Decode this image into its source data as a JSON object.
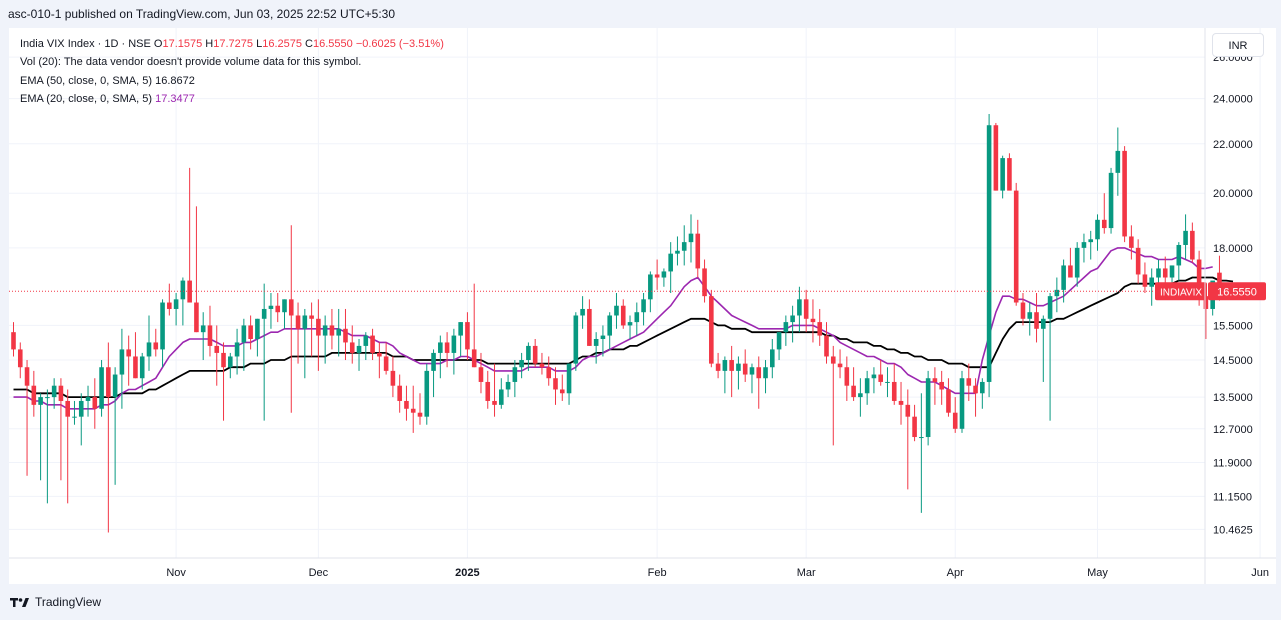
{
  "header": {
    "published_text": "asc-010-1 published on TradingView.com, Jun 03, 2025 22:52 UTC+5:30"
  },
  "legend": {
    "symbol_line": "India VIX Index · 1D · NSE",
    "ohlc": {
      "o_label": "O",
      "o_value": "17.1575",
      "h_label": "H",
      "h_value": "17.7275",
      "l_label": "L",
      "l_value": "16.2575",
      "c_label": "C",
      "c_value": "16.5550",
      "change": "−0.6025 (−3.51%)"
    },
    "vol_line": "Vol (20): The data vendor doesn't provide volume data for this symbol.",
    "ema50_label": "EMA (50, close, 0, SMA, 5)",
    "ema50_value": "16.8672",
    "ema20_label": "EMA (20, close, 0, SMA, 5)",
    "ema20_value": "17.3477"
  },
  "currency": "INR",
  "price_tag": {
    "symbol": "INDIAVIX",
    "value": "16.5550"
  },
  "footer": {
    "logo_text": "TradingView"
  },
  "colors": {
    "up": "#089981",
    "down": "#f23645",
    "ema50": "#000000",
    "ema20": "#9c27b0",
    "grid": "#f0f3fa",
    "price_line": "#f23645"
  },
  "chart_data": {
    "type": "candlestick",
    "title": "India VIX Index · 1D · NSE",
    "y_scale": "log",
    "y_tick_labels": [
      "10.4625",
      "11.1500",
      "11.9000",
      "12.7000",
      "13.5000",
      "14.5000",
      "15.5000",
      "16.5550",
      "18.0000",
      "20.0000",
      "22.0000",
      "24.0000",
      "26.0000"
    ],
    "y_range": [
      9.9,
      27.5
    ],
    "x_tick_labels": [
      {
        "label": "Nov",
        "index": 24,
        "bold": false
      },
      {
        "label": "Dec",
        "index": 45,
        "bold": false
      },
      {
        "label": "2025",
        "index": 67,
        "bold": true
      },
      {
        "label": "Feb",
        "index": 95,
        "bold": false
      },
      {
        "label": "Mar",
        "index": 117,
        "bold": false
      },
      {
        "label": "Apr",
        "index": 139,
        "bold": false
      },
      {
        "label": "May",
        "index": 160,
        "bold": false
      },
      {
        "label": "Jun",
        "index": 184,
        "bold": false
      }
    ],
    "candles": [
      [
        15.3,
        15.6,
        14.6,
        14.8
      ],
      [
        14.8,
        15.0,
        14.0,
        14.3
      ],
      [
        14.3,
        14.5,
        11.6,
        13.8
      ],
      [
        13.8,
        14.2,
        13.0,
        13.3
      ],
      [
        13.3,
        13.6,
        11.5,
        13.5
      ],
      [
        13.5,
        13.7,
        11.0,
        13.5
      ],
      [
        13.5,
        14.0,
        13.2,
        13.8
      ],
      [
        13.8,
        14.0,
        11.5,
        13.4
      ],
      [
        13.4,
        13.7,
        11.0,
        13.0
      ],
      [
        13.0,
        13.4,
        12.8,
        13.0
      ],
      [
        13.0,
        13.6,
        12.3,
        13.4
      ],
      [
        13.4,
        13.8,
        13.0,
        13.5
      ],
      [
        13.5,
        14.0,
        12.7,
        13.2
      ],
      [
        13.2,
        14.5,
        13.0,
        14.3
      ],
      [
        14.3,
        15.0,
        10.4,
        13.5
      ],
      [
        13.5,
        14.3,
        11.4,
        14.1
      ],
      [
        14.1,
        15.4,
        13.2,
        14.8
      ],
      [
        14.8,
        15.2,
        13.8,
        14.6
      ],
      [
        14.6,
        15.3,
        14.0,
        14.0
      ],
      [
        14.0,
        14.7,
        13.7,
        14.6
      ],
      [
        14.6,
        15.8,
        14.2,
        15.0
      ],
      [
        15.0,
        15.4,
        14.6,
        14.8
      ],
      [
        14.8,
        16.3,
        14.3,
        16.2
      ],
      [
        16.2,
        16.8,
        15.8,
        16.0
      ],
      [
        16.0,
        16.5,
        15.5,
        16.3
      ],
      [
        16.3,
        17.0,
        15.5,
        16.9
      ],
      [
        16.9,
        21.0,
        16.2,
        16.2
      ],
      [
        16.2,
        19.5,
        15.3,
        15.3
      ],
      [
        15.3,
        15.9,
        14.5,
        15.5
      ],
      [
        15.5,
        16.1,
        14.6,
        14.9
      ],
      [
        14.9,
        15.5,
        13.8,
        14.7
      ],
      [
        14.7,
        15.0,
        12.9,
        14.3
      ],
      [
        14.3,
        14.7,
        14.0,
        14.6
      ],
      [
        14.6,
        15.4,
        14.1,
        15.0
      ],
      [
        15.0,
        15.7,
        14.2,
        15.5
      ],
      [
        15.5,
        15.8,
        14.8,
        15.1
      ],
      [
        15.1,
        15.7,
        14.6,
        15.7
      ],
      [
        15.7,
        16.8,
        12.9,
        16.0
      ],
      [
        16.0,
        16.5,
        15.4,
        16.1
      ],
      [
        16.1,
        16.5,
        15.6,
        15.9
      ],
      [
        15.9,
        16.3,
        15.4,
        16.3
      ],
      [
        16.3,
        18.8,
        13.1,
        15.8
      ],
      [
        15.8,
        16.2,
        14.4,
        15.4
      ],
      [
        15.4,
        16.0,
        14.0,
        15.8
      ],
      [
        15.8,
        16.2,
        14.6,
        15.7
      ],
      [
        15.7,
        16.3,
        14.2,
        15.2
      ],
      [
        15.2,
        15.8,
        14.4,
        15.5
      ],
      [
        15.5,
        16.0,
        14.8,
        15.2
      ],
      [
        15.2,
        16.0,
        14.6,
        15.4
      ],
      [
        15.4,
        16.0,
        14.5,
        15.0
      ],
      [
        15.0,
        15.5,
        14.4,
        14.7
      ],
      [
        14.7,
        15.1,
        14.2,
        14.9
      ],
      [
        14.9,
        15.3,
        14.5,
        15.2
      ],
      [
        15.2,
        15.4,
        14.5,
        14.7
      ],
      [
        14.7,
        15.0,
        14.0,
        14.6
      ],
      [
        14.6,
        15.0,
        14.1,
        14.2
      ],
      [
        14.2,
        14.6,
        13.5,
        13.8
      ],
      [
        13.8,
        14.1,
        13.1,
        13.4
      ],
      [
        13.4,
        13.8,
        12.9,
        13.2
      ],
      [
        13.2,
        13.8,
        12.6,
        13.1
      ],
      [
        13.1,
        13.6,
        12.8,
        13.0
      ],
      [
        13.0,
        14.4,
        12.8,
        14.2
      ],
      [
        14.2,
        14.8,
        13.5,
        14.7
      ],
      [
        14.7,
        15.2,
        14.0,
        15.0
      ],
      [
        15.0,
        15.3,
        14.3,
        14.7
      ],
      [
        14.7,
        15.4,
        14.1,
        15.2
      ],
      [
        15.2,
        15.6,
        14.6,
        15.6
      ],
      [
        15.6,
        15.9,
        14.5,
        14.8
      ],
      [
        14.8,
        16.8,
        14.3,
        14.3
      ],
      [
        14.3,
        14.7,
        13.6,
        13.9
      ],
      [
        13.9,
        14.2,
        13.2,
        13.4
      ],
      [
        13.4,
        14.4,
        13.0,
        13.3
      ],
      [
        13.3,
        14.0,
        13.2,
        13.7
      ],
      [
        13.7,
        14.1,
        13.5,
        13.9
      ],
      [
        13.9,
        14.5,
        13.5,
        14.3
      ],
      [
        14.3,
        14.7,
        14.0,
        14.5
      ],
      [
        14.5,
        15.0,
        14.2,
        14.9
      ],
      [
        14.9,
        15.1,
        14.3,
        14.4
      ],
      [
        14.4,
        14.7,
        14.1,
        14.3
      ],
      [
        14.3,
        14.6,
        13.8,
        14.0
      ],
      [
        14.0,
        14.3,
        13.3,
        13.7
      ],
      [
        13.7,
        14.1,
        13.4,
        13.6
      ],
      [
        13.6,
        14.4,
        13.3,
        14.4
      ],
      [
        14.4,
        15.9,
        14.2,
        15.8
      ],
      [
        15.8,
        16.4,
        15.4,
        16.0
      ],
      [
        16.0,
        16.3,
        14.9,
        14.9
      ],
      [
        14.9,
        15.3,
        14.4,
        15.1
      ],
      [
        15.1,
        15.5,
        14.6,
        15.2
      ],
      [
        15.2,
        15.9,
        14.8,
        15.8
      ],
      [
        15.8,
        16.5,
        15.4,
        16.1
      ],
      [
        16.1,
        16.3,
        15.4,
        15.5
      ],
      [
        15.5,
        15.8,
        15.1,
        15.6
      ],
      [
        15.6,
        16.2,
        15.2,
        15.9
      ],
      [
        15.9,
        16.5,
        15.5,
        16.3
      ],
      [
        16.3,
        17.2,
        15.9,
        17.1
      ],
      [
        17.1,
        17.6,
        16.6,
        17.0
      ],
      [
        17.0,
        17.3,
        16.7,
        17.2
      ],
      [
        17.2,
        18.2,
        16.5,
        17.8
      ],
      [
        17.8,
        18.4,
        17.4,
        17.9
      ],
      [
        17.9,
        18.8,
        17.4,
        18.2
      ],
      [
        18.2,
        19.2,
        17.5,
        18.5
      ],
      [
        18.5,
        19.0,
        17.0,
        17.3
      ],
      [
        17.3,
        17.6,
        16.2,
        16.4
      ],
      [
        16.4,
        16.6,
        14.3,
        14.4
      ],
      [
        14.4,
        14.7,
        14.0,
        14.2
      ],
      [
        14.2,
        14.6,
        13.6,
        14.5
      ],
      [
        14.5,
        14.9,
        13.5,
        14.2
      ],
      [
        14.2,
        14.6,
        13.7,
        14.4
      ],
      [
        14.4,
        14.8,
        13.9,
        14.1
      ],
      [
        14.1,
        14.4,
        13.6,
        14.3
      ],
      [
        14.3,
        14.6,
        13.2,
        14.0
      ],
      [
        14.0,
        14.5,
        13.6,
        14.3
      ],
      [
        14.3,
        15.1,
        14.0,
        14.8
      ],
      [
        14.8,
        15.3,
        14.5,
        15.3
      ],
      [
        15.3,
        15.8,
        14.9,
        15.6
      ],
      [
        15.6,
        16.1,
        15.0,
        15.8
      ],
      [
        15.8,
        16.7,
        15.3,
        16.3
      ],
      [
        16.3,
        16.6,
        15.3,
        15.7
      ],
      [
        15.7,
        16.3,
        15.0,
        15.6
      ],
      [
        15.6,
        16.0,
        14.9,
        15.2
      ],
      [
        15.2,
        15.6,
        14.4,
        14.6
      ],
      [
        14.6,
        14.9,
        12.3,
        14.4
      ],
      [
        14.4,
        14.8,
        14.0,
        14.3
      ],
      [
        14.3,
        14.6,
        13.4,
        13.8
      ],
      [
        13.8,
        14.3,
        13.4,
        13.5
      ],
      [
        13.5,
        14.0,
        13.0,
        13.6
      ],
      [
        13.6,
        14.2,
        13.3,
        14.0
      ],
      [
        14.0,
        14.3,
        13.6,
        14.1
      ],
      [
        14.1,
        14.5,
        13.8,
        13.9
      ],
      [
        13.9,
        14.3,
        13.5,
        13.9
      ],
      [
        13.9,
        14.4,
        13.3,
        13.4
      ],
      [
        13.4,
        13.9,
        12.8,
        13.3
      ],
      [
        13.3,
        13.7,
        11.3,
        13.0
      ],
      [
        13.0,
        13.3,
        12.4,
        12.5
      ],
      [
        12.5,
        13.6,
        10.8,
        12.5
      ],
      [
        12.5,
        14.2,
        12.3,
        14.0
      ],
      [
        14.0,
        14.3,
        13.3,
        13.9
      ],
      [
        13.9,
        14.2,
        13.3,
        13.7
      ],
      [
        13.7,
        14.0,
        13.0,
        13.1
      ],
      [
        13.1,
        13.5,
        12.6,
        12.7
      ],
      [
        12.7,
        14.2,
        12.6,
        14.0
      ],
      [
        14.0,
        14.4,
        13.4,
        13.8
      ],
      [
        13.8,
        14.0,
        13.0,
        13.6
      ],
      [
        13.6,
        14.0,
        13.2,
        13.9
      ],
      [
        13.9,
        23.3,
        13.5,
        22.8
      ],
      [
        22.8,
        22.9,
        20.1,
        20.1
      ],
      [
        20.1,
        21.5,
        19.8,
        21.4
      ],
      [
        21.4,
        21.6,
        20.2,
        20.1
      ],
      [
        20.1,
        20.4,
        16.1,
        16.2
      ],
      [
        16.2,
        16.5,
        15.5,
        15.7
      ],
      [
        15.7,
        16.2,
        15.2,
        15.9
      ],
      [
        15.9,
        16.5,
        15.0,
        15.4
      ],
      [
        15.4,
        15.8,
        13.9,
        15.7
      ],
      [
        15.7,
        16.5,
        12.9,
        16.4
      ],
      [
        16.4,
        17.0,
        15.9,
        16.6
      ],
      [
        16.6,
        17.6,
        16.2,
        17.4
      ],
      [
        17.4,
        18.0,
        17.0,
        17.0
      ],
      [
        17.0,
        18.2,
        16.7,
        18.0
      ],
      [
        18.0,
        18.5,
        17.5,
        18.2
      ],
      [
        18.2,
        18.6,
        17.6,
        18.3
      ],
      [
        18.3,
        19.2,
        17.9,
        19.0
      ],
      [
        19.0,
        20.0,
        18.5,
        18.7
      ],
      [
        18.7,
        21.0,
        18.5,
        20.8
      ],
      [
        20.8,
        22.7,
        19.9,
        21.7
      ],
      [
        21.7,
        21.9,
        18.2,
        18.4
      ],
      [
        18.4,
        18.8,
        17.6,
        18.0
      ],
      [
        18.0,
        18.3,
        16.8,
        17.1
      ],
      [
        17.1,
        17.5,
        16.5,
        16.7
      ],
      [
        16.7,
        17.3,
        16.1,
        17.0
      ],
      [
        17.0,
        17.6,
        16.4,
        17.3
      ],
      [
        17.3,
        17.7,
        16.8,
        17.0
      ],
      [
        17.0,
        17.4,
        16.3,
        17.4
      ],
      [
        17.4,
        18.2,
        16.9,
        18.1
      ],
      [
        18.1,
        19.2,
        17.6,
        18.6
      ],
      [
        18.6,
        18.9,
        17.5,
        17.6
      ],
      [
        17.6,
        17.9,
        16.1,
        16.4
      ],
      [
        16.4,
        16.8,
        15.1,
        16.0
      ],
      [
        16.0,
        16.8,
        15.8,
        16.9
      ],
      [
        17.16,
        17.73,
        16.26,
        16.56
      ]
    ],
    "ema50": [
      13.7,
      13.7,
      13.7,
      13.6,
      13.6,
      13.6,
      13.6,
      13.6,
      13.5,
      13.5,
      13.5,
      13.5,
      13.5,
      13.5,
      13.5,
      13.5,
      13.6,
      13.6,
      13.6,
      13.6,
      13.7,
      13.7,
      13.8,
      13.9,
      14.0,
      14.1,
      14.2,
      14.2,
      14.2,
      14.2,
      14.2,
      14.2,
      14.3,
      14.3,
      14.3,
      14.4,
      14.4,
      14.4,
      14.5,
      14.5,
      14.5,
      14.6,
      14.6,
      14.6,
      14.6,
      14.6,
      14.6,
      14.7,
      14.7,
      14.7,
      14.7,
      14.7,
      14.7,
      14.7,
      14.7,
      14.7,
      14.6,
      14.6,
      14.6,
      14.5,
      14.5,
      14.5,
      14.5,
      14.5,
      14.5,
      14.5,
      14.5,
      14.5,
      14.5,
      14.5,
      14.4,
      14.4,
      14.4,
      14.4,
      14.4,
      14.4,
      14.4,
      14.4,
      14.4,
      14.4,
      14.4,
      14.4,
      14.4,
      14.5,
      14.6,
      14.6,
      14.7,
      14.7,
      14.8,
      14.8,
      14.8,
      14.9,
      14.9,
      15.0,
      15.1,
      15.2,
      15.3,
      15.4,
      15.5,
      15.6,
      15.7,
      15.7,
      15.7,
      15.6,
      15.5,
      15.5,
      15.4,
      15.4,
      15.4,
      15.3,
      15.3,
      15.3,
      15.3,
      15.3,
      15.3,
      15.3,
      15.3,
      15.3,
      15.3,
      15.3,
      15.2,
      15.2,
      15.1,
      15.1,
      15.0,
      15.0,
      15.0,
      14.9,
      14.9,
      14.8,
      14.8,
      14.7,
      14.7,
      14.6,
      14.6,
      14.5,
      14.5,
      14.5,
      14.4,
      14.4,
      14.4,
      14.3,
      14.3,
      14.3,
      14.3,
      14.7,
      15.1,
      15.4,
      15.6,
      15.6,
      15.6,
      15.6,
      15.6,
      15.6,
      15.7,
      15.7,
      15.8,
      15.9,
      16.0,
      16.1,
      16.2,
      16.3,
      16.4,
      16.5,
      16.7,
      16.8,
      16.8,
      16.8,
      16.8,
      16.8,
      16.8,
      16.8,
      16.9,
      16.9,
      17.0,
      17.0,
      17.0,
      17.0,
      16.9,
      16.9,
      16.87
    ],
    "ema20": [
      13.5,
      13.5,
      13.5,
      13.4,
      13.4,
      13.3,
      13.3,
      13.3,
      13.2,
      13.2,
      13.2,
      13.2,
      13.2,
      13.3,
      13.3,
      13.4,
      13.6,
      13.7,
      13.7,
      13.8,
      13.9,
      14.0,
      14.3,
      14.6,
      14.8,
      15.0,
      15.1,
      15.1,
      15.1,
      15.1,
      15.0,
      14.9,
      14.9,
      14.9,
      15.0,
      15.0,
      15.1,
      15.2,
      15.3,
      15.3,
      15.4,
      15.4,
      15.4,
      15.4,
      15.4,
      15.4,
      15.4,
      15.4,
      15.4,
      15.3,
      15.2,
      15.2,
      15.2,
      15.1,
      15.0,
      15.0,
      14.9,
      14.7,
      14.6,
      14.5,
      14.4,
      14.4,
      14.4,
      14.4,
      14.5,
      14.5,
      14.6,
      14.6,
      14.5,
      14.4,
      14.3,
      14.2,
      14.2,
      14.2,
      14.2,
      14.2,
      14.3,
      14.3,
      14.3,
      14.3,
      14.2,
      14.2,
      14.2,
      14.3,
      14.5,
      14.6,
      14.6,
      14.7,
      14.8,
      14.9,
      15.0,
      15.1,
      15.2,
      15.3,
      15.5,
      15.7,
      15.9,
      16.1,
      16.4,
      16.7,
      16.9,
      17.0,
      16.7,
      16.4,
      16.2,
      16.0,
      15.8,
      15.7,
      15.6,
      15.5,
      15.4,
      15.4,
      15.4,
      15.4,
      15.4,
      15.5,
      15.5,
      15.5,
      15.5,
      15.4,
      15.3,
      15.2,
      15.0,
      14.9,
      14.8,
      14.7,
      14.6,
      14.6,
      14.5,
      14.4,
      14.4,
      14.3,
      14.1,
      14.0,
      13.9,
      13.9,
      13.9,
      13.8,
      13.7,
      13.6,
      13.6,
      13.6,
      13.6,
      14.5,
      15.2,
      15.9,
      16.4,
      16.4,
      16.3,
      16.3,
      16.2,
      16.1,
      16.1,
      16.2,
      16.3,
      16.4,
      16.6,
      16.8,
      17.0,
      17.2,
      17.3,
      17.6,
      17.9,
      18.0,
      18.0,
      17.9,
      17.8,
      17.7,
      17.7,
      17.6,
      17.6,
      17.6,
      17.7,
      17.6,
      17.5,
      17.3,
      17.3,
      17.35
    ]
  }
}
